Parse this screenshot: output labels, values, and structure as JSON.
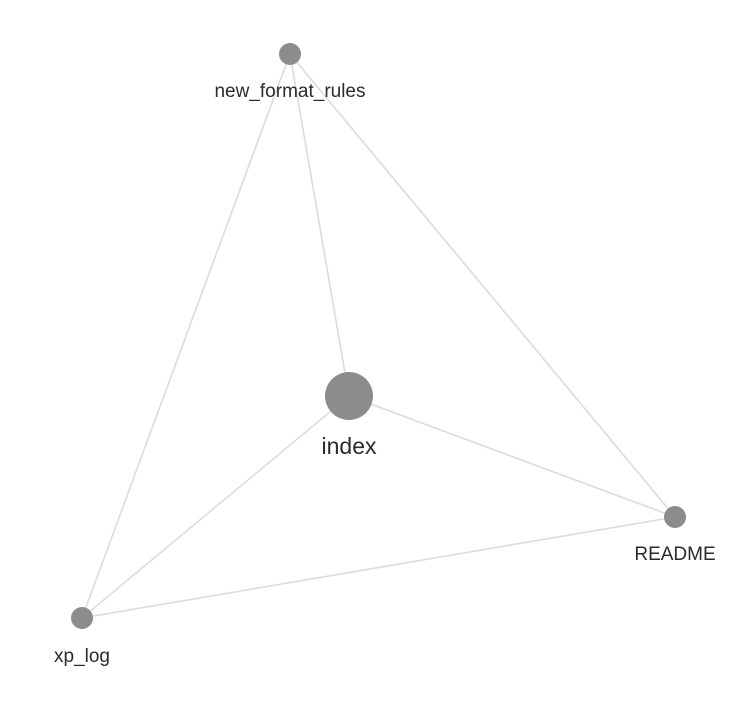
{
  "graph": {
    "nodes": [
      {
        "id": "new_format_rules",
        "label": "new_format_rules",
        "color": "#8c8c8c"
      },
      {
        "id": "index",
        "label": "index",
        "color": "#8c8c8c"
      },
      {
        "id": "README",
        "label": "README",
        "color": "#8c8c8c"
      },
      {
        "id": "xp_log",
        "label": "xp_log",
        "color": "#8c8c8c"
      }
    ],
    "edges": [
      {
        "from": "new_format_rules",
        "to": "index"
      },
      {
        "from": "new_format_rules",
        "to": "README"
      },
      {
        "from": "new_format_rules",
        "to": "xp_log"
      },
      {
        "from": "index",
        "to": "README"
      },
      {
        "from": "index",
        "to": "xp_log"
      },
      {
        "from": "README",
        "to": "xp_log"
      }
    ],
    "edge_color": "#dcdcdc"
  }
}
